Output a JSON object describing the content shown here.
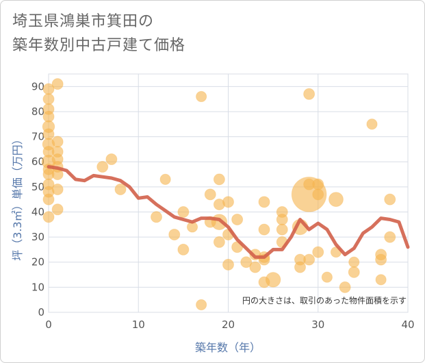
{
  "chart_data": {
    "type": "scatter",
    "title_lines": [
      "埼玉県鴻巣市箕田の",
      "築年数別中古戸建て価格"
    ],
    "xlabel": "築年数（年）",
    "ylabel": "坪（3.3㎡）単価（万円）",
    "xlim": [
      0,
      40
    ],
    "ylim": [
      0,
      95
    ],
    "xticks": [
      0,
      10,
      20,
      30,
      40
    ],
    "yticks": [
      0,
      10,
      20,
      30,
      40,
      50,
      60,
      70,
      80,
      90
    ],
    "grid": true,
    "note": "円の大きさは、取引のあった物件面積を示す",
    "colors": {
      "bubble": "#f5b44f",
      "line": "#d2604a"
    },
    "points": [
      {
        "x": 0,
        "y": 89,
        "s": 1
      },
      {
        "x": 0,
        "y": 85,
        "s": 1
      },
      {
        "x": 0,
        "y": 81,
        "s": 1
      },
      {
        "x": 0,
        "y": 78,
        "s": 1
      },
      {
        "x": 0,
        "y": 74,
        "s": 1.2
      },
      {
        "x": 0,
        "y": 71,
        "s": 1
      },
      {
        "x": 0,
        "y": 67,
        "s": 1.2
      },
      {
        "x": 0,
        "y": 64,
        "s": 1
      },
      {
        "x": 0,
        "y": 60,
        "s": 1.5
      },
      {
        "x": 0,
        "y": 57,
        "s": 1
      },
      {
        "x": 0,
        "y": 55,
        "s": 1
      },
      {
        "x": 0,
        "y": 51,
        "s": 1
      },
      {
        "x": 0,
        "y": 48,
        "s": 1
      },
      {
        "x": 0,
        "y": 45,
        "s": 1
      },
      {
        "x": 0,
        "y": 38,
        "s": 1
      },
      {
        "x": 1,
        "y": 91,
        "s": 1
      },
      {
        "x": 1,
        "y": 68,
        "s": 1
      },
      {
        "x": 1,
        "y": 64,
        "s": 1
      },
      {
        "x": 1,
        "y": 61,
        "s": 1
      },
      {
        "x": 1,
        "y": 58,
        "s": 1
      },
      {
        "x": 1,
        "y": 55,
        "s": 1
      },
      {
        "x": 1,
        "y": 49,
        "s": 1
      },
      {
        "x": 1,
        "y": 41,
        "s": 1
      },
      {
        "x": 6,
        "y": 58,
        "s": 1
      },
      {
        "x": 7,
        "y": 61,
        "s": 1
      },
      {
        "x": 8,
        "y": 49,
        "s": 1
      },
      {
        "x": 12,
        "y": 38,
        "s": 1
      },
      {
        "x": 13,
        "y": 53,
        "s": 0.9
      },
      {
        "x": 14,
        "y": 31,
        "s": 1
      },
      {
        "x": 15,
        "y": 40,
        "s": 1
      },
      {
        "x": 15,
        "y": 25,
        "s": 1
      },
      {
        "x": 16,
        "y": 34,
        "s": 0.9
      },
      {
        "x": 17,
        "y": 86,
        "s": 0.9
      },
      {
        "x": 17,
        "y": 3,
        "s": 0.9
      },
      {
        "x": 18,
        "y": 47,
        "s": 1
      },
      {
        "x": 18,
        "y": 36,
        "s": 1
      },
      {
        "x": 19,
        "y": 53,
        "s": 1
      },
      {
        "x": 19,
        "y": 43,
        "s": 1
      },
      {
        "x": 19,
        "y": 36,
        "s": 2
      },
      {
        "x": 19,
        "y": 28,
        "s": 1
      },
      {
        "x": 20,
        "y": 44,
        "s": 1
      },
      {
        "x": 20,
        "y": 31,
        "s": 1
      },
      {
        "x": 20,
        "y": 19,
        "s": 1
      },
      {
        "x": 21,
        "y": 37,
        "s": 1
      },
      {
        "x": 21,
        "y": 26,
        "s": 1
      },
      {
        "x": 22,
        "y": 20,
        "s": 1
      },
      {
        "x": 23,
        "y": 23,
        "s": 1
      },
      {
        "x": 23,
        "y": 18,
        "s": 1
      },
      {
        "x": 24,
        "y": 44,
        "s": 1
      },
      {
        "x": 24,
        "y": 33,
        "s": 1
      },
      {
        "x": 24,
        "y": 22,
        "s": 1
      },
      {
        "x": 24,
        "y": 21,
        "s": 1
      },
      {
        "x": 24,
        "y": 12,
        "s": 1
      },
      {
        "x": 25,
        "y": 13,
        "s": 1.8
      },
      {
        "x": 26,
        "y": 40,
        "s": 1
      },
      {
        "x": 26,
        "y": 37,
        "s": 1
      },
      {
        "x": 26,
        "y": 33,
        "s": 1
      },
      {
        "x": 26,
        "y": 28,
        "s": 1
      },
      {
        "x": 28,
        "y": 34,
        "s": 2
      },
      {
        "x": 28,
        "y": 21,
        "s": 1
      },
      {
        "x": 28,
        "y": 18,
        "s": 1
      },
      {
        "x": 29,
        "y": 87,
        "s": 1
      },
      {
        "x": 29,
        "y": 51,
        "s": 1
      },
      {
        "x": 29,
        "y": 47,
        "s": 10
      },
      {
        "x": 29,
        "y": 21,
        "s": 1
      },
      {
        "x": 30,
        "y": 51,
        "s": 1
      },
      {
        "x": 30,
        "y": 47,
        "s": 1
      },
      {
        "x": 30,
        "y": 24,
        "s": 1
      },
      {
        "x": 31,
        "y": 14,
        "s": 0.9
      },
      {
        "x": 32,
        "y": 45,
        "s": 1.7
      },
      {
        "x": 32,
        "y": 24,
        "s": 0.9
      },
      {
        "x": 33,
        "y": 10,
        "s": 1
      },
      {
        "x": 34,
        "y": 20,
        "s": 0.9
      },
      {
        "x": 34,
        "y": 16,
        "s": 1
      },
      {
        "x": 36,
        "y": 75,
        "s": 0.9
      },
      {
        "x": 37,
        "y": 23,
        "s": 1
      },
      {
        "x": 37,
        "y": 21,
        "s": 1
      },
      {
        "x": 37,
        "y": 13,
        "s": 0.9
      },
      {
        "x": 38,
        "y": 45,
        "s": 1
      },
      {
        "x": 38,
        "y": 30,
        "s": 1
      }
    ],
    "trend": {
      "x": [
        0,
        1,
        2,
        3,
        4,
        5,
        6,
        7,
        8,
        9,
        10,
        11,
        12,
        13,
        14,
        15,
        16,
        17,
        18,
        19,
        20,
        21,
        22,
        23,
        24,
        25,
        26,
        27,
        28,
        29,
        30,
        31,
        32,
        33,
        34,
        35,
        36,
        37,
        38,
        39,
        40
      ],
      "y": [
        58,
        57.5,
        56.5,
        53,
        52.5,
        54.5,
        54,
        53.5,
        52.5,
        50,
        45.5,
        46,
        43,
        40.5,
        38,
        37,
        36,
        37.5,
        37.5,
        37,
        34,
        29,
        25.5,
        22,
        22,
        25,
        25,
        30,
        37,
        33,
        35.5,
        33,
        27,
        23,
        25.5,
        31.5,
        34,
        37.5,
        37,
        36,
        26
      ]
    }
  }
}
